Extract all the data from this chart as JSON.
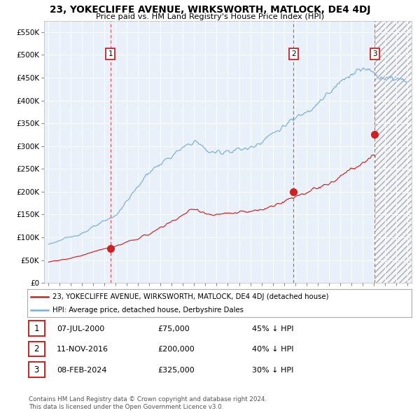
{
  "title": "23, YOKECLIFFE AVENUE, WIRKSWORTH, MATLOCK, DE4 4DJ",
  "subtitle": "Price paid vs. HM Land Registry's House Price Index (HPI)",
  "xmin": 1994.6,
  "xmax": 2027.4,
  "ymin": 0,
  "ymax": 575000,
  "yticks": [
    0,
    50000,
    100000,
    150000,
    200000,
    250000,
    300000,
    350000,
    400000,
    450000,
    500000,
    550000
  ],
  "ytick_labels": [
    "£0",
    "£50K",
    "£100K",
    "£150K",
    "£200K",
    "£250K",
    "£300K",
    "£350K",
    "£400K",
    "£450K",
    "£500K",
    "£550K"
  ],
  "background_color": "#e8f0fa",
  "future_start": 2024.12,
  "sale_dates": [
    2000.52,
    2016.87,
    2024.1
  ],
  "sale_prices": [
    75000,
    200000,
    325000
  ],
  "sale_labels": [
    "1",
    "2",
    "3"
  ],
  "sale_date_strings": [
    "07-JUL-2000",
    "11-NOV-2016",
    "08-FEB-2024"
  ],
  "sale_price_strings": [
    "£75,000",
    "£200,000",
    "£325,000"
  ],
  "sale_pct_strings": [
    "45% ↓ HPI",
    "40% ↓ HPI",
    "30% ↓ HPI"
  ],
  "hpi_color": "#7bafd4",
  "price_color": "#cc2222",
  "legend_entries": [
    "23, YOKECLIFFE AVENUE, WIRKSWORTH, MATLOCK, DE4 4DJ (detached house)",
    "HPI: Average price, detached house, Derbyshire Dales"
  ],
  "footer_line1": "Contains HM Land Registry data © Crown copyright and database right 2024.",
  "footer_line2": "This data is licensed under the Open Government Licence v3.0."
}
